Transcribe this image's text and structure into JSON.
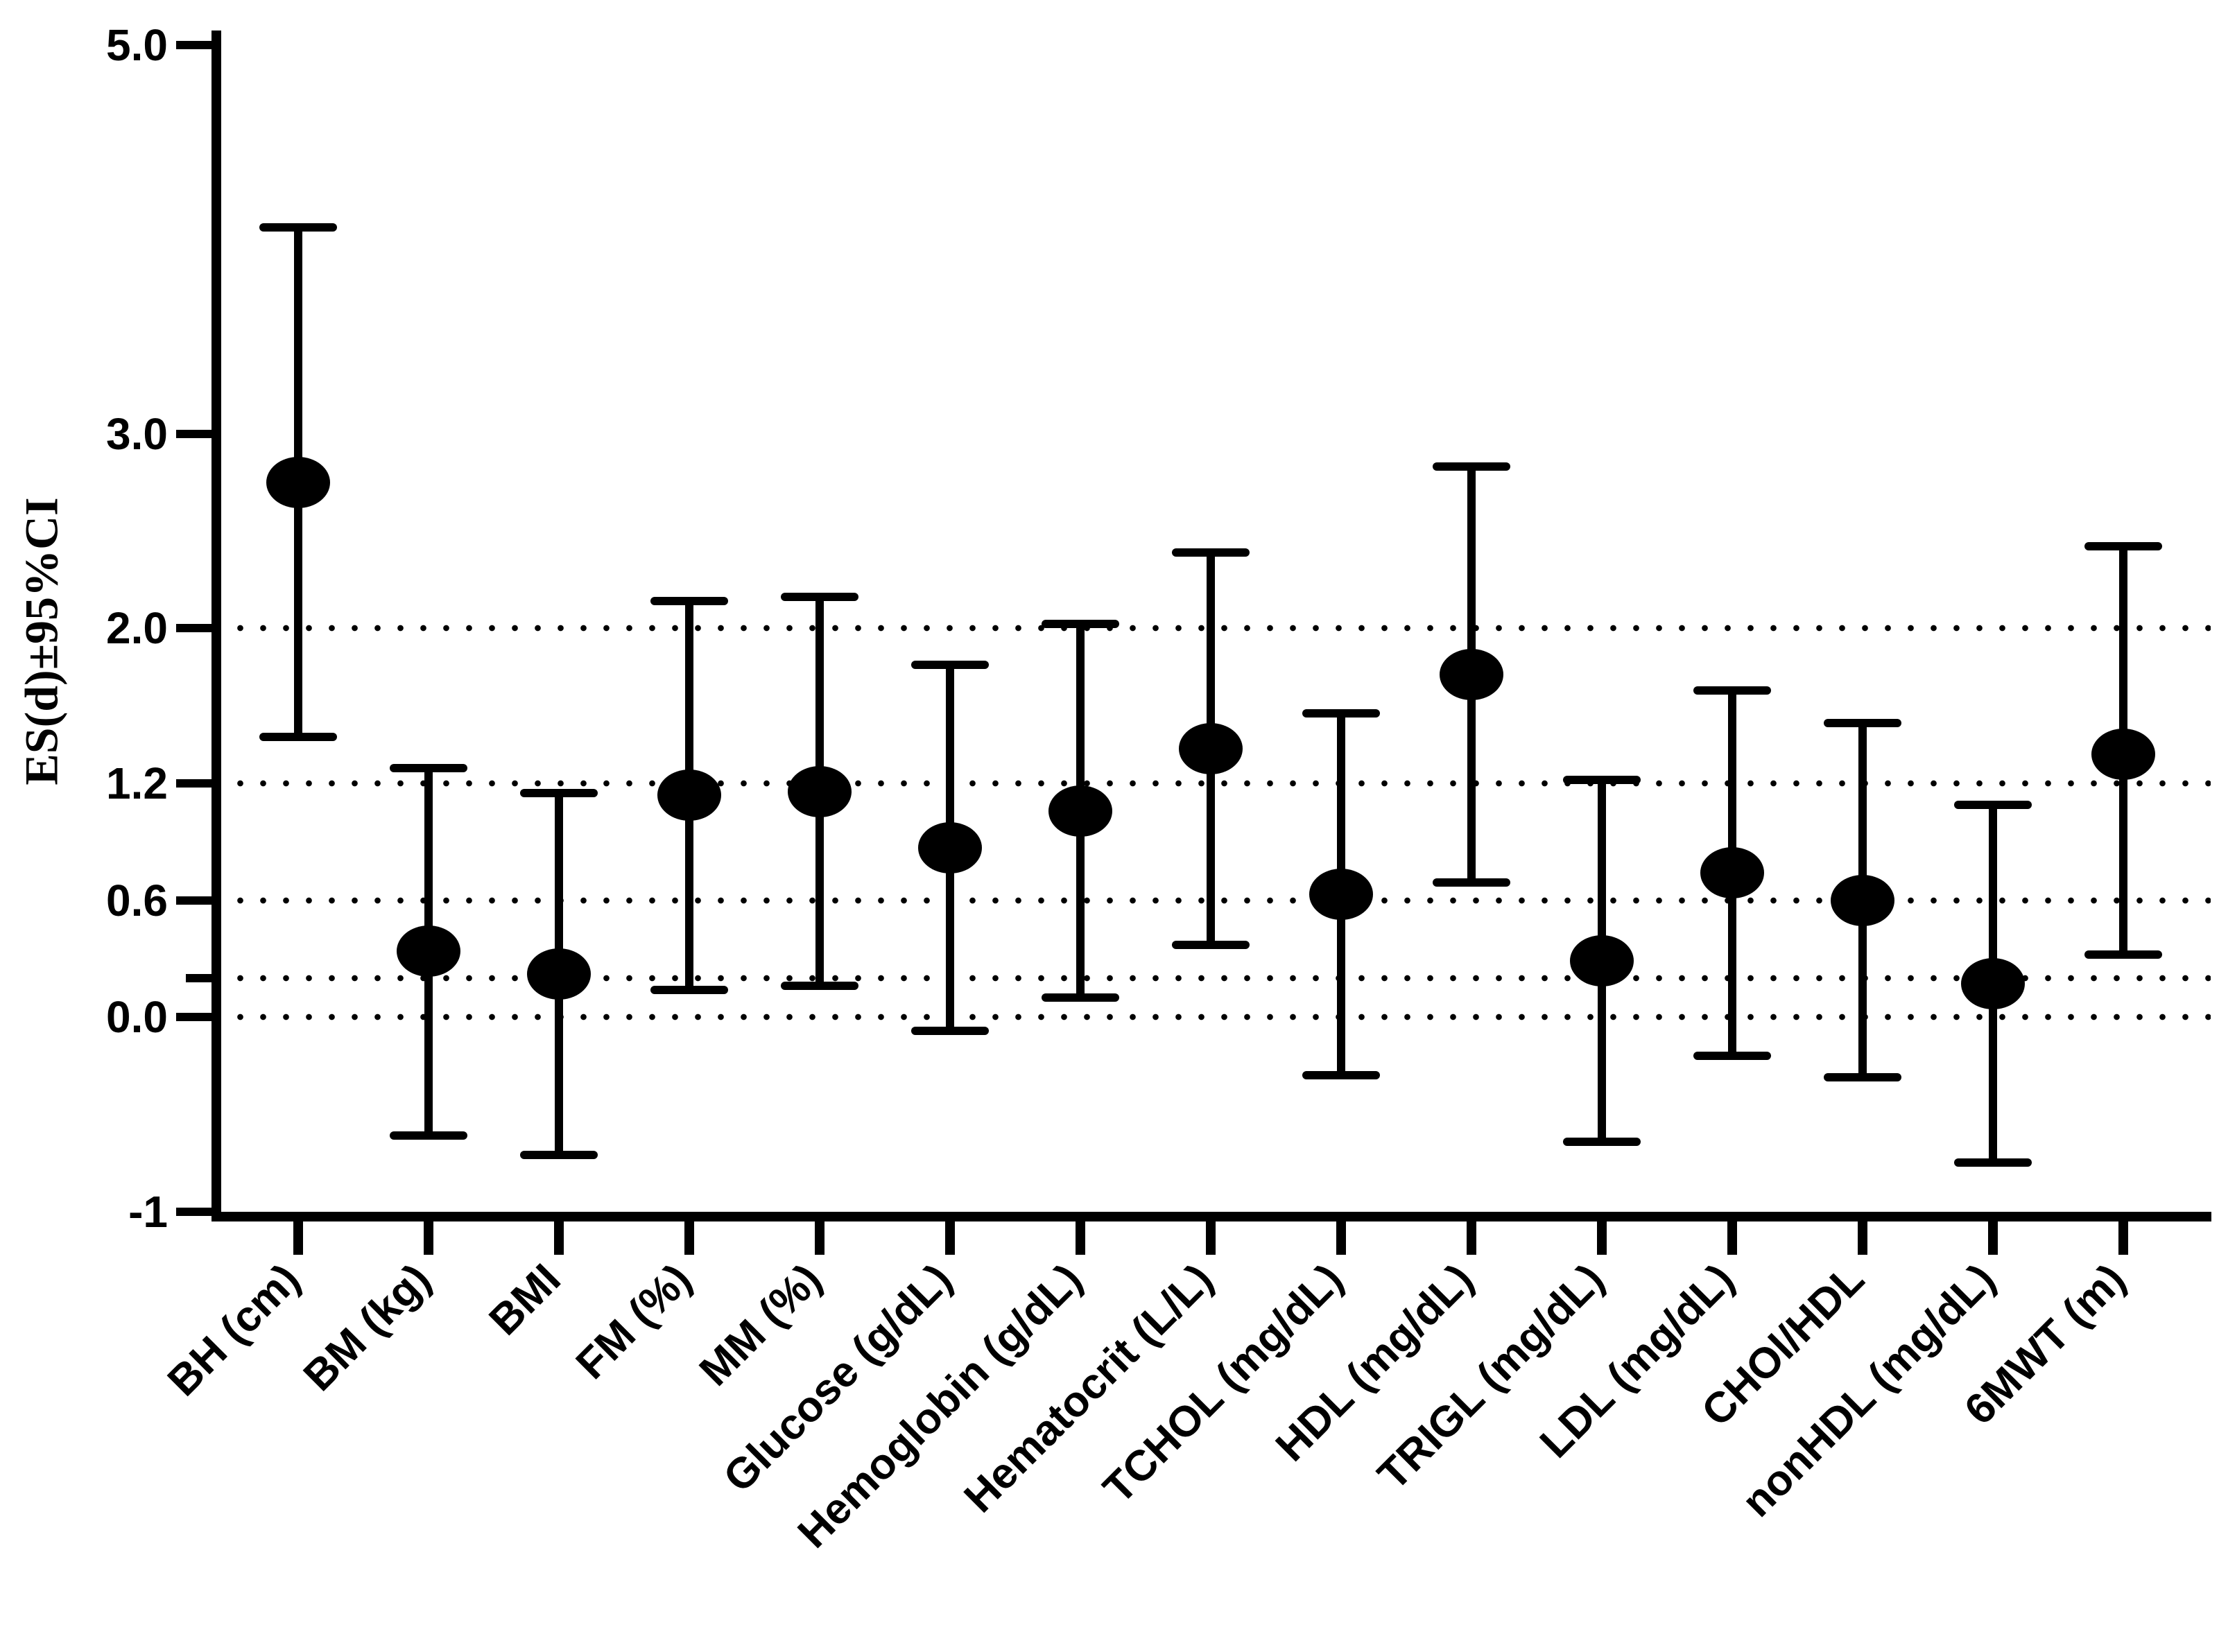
{
  "chart_data": {
    "type": "scatter",
    "subtype": "point_estimate_with_95ci_error_bars",
    "title": "",
    "xlabel": "",
    "ylabel": "ES(d)±95%CI",
    "ylim": [
      -1,
      5.0
    ],
    "grid": "horizontal-dotted",
    "legend_position": "none",
    "marker": "filled-black-ellipse",
    "yticks": [
      {
        "value": 5.0,
        "label": "5.0"
      },
      {
        "value": 3.0,
        "label": "3.0"
      },
      {
        "value": 2.0,
        "label": "2.0"
      },
      {
        "value": 1.2,
        "label": "1.2"
      },
      {
        "value": 0.6,
        "label": "0.6"
      },
      {
        "value": 0.2,
        "label": ""
      },
      {
        "value": 0.0,
        "label": "0.0"
      },
      {
        "value": -1.0,
        "label": "-1"
      }
    ],
    "gridline_values": [
      2.0,
      1.2,
      0.6,
      0.2,
      0.0
    ],
    "categories": [
      "BH (cm)",
      "BM (kg)",
      "BMI",
      "FM (%)",
      "MM (%)",
      "Glucose (g/dL)",
      "Hemoglobin (g/dL)",
      "Hematocrit (L/L)",
      "TCHOL (mg/dL)",
      "HDL (mg/dL)",
      "TRIGL (mg/dL)",
      "LDL (mg/dL)",
      "CHOl/HDL",
      "nonHDL (mg/dL)",
      "6MWT (m)"
    ],
    "points": [
      {
        "category": "BH (cm)",
        "es": 2.75,
        "ci_low": 1.44,
        "ci_high": 4.06
      },
      {
        "category": "BM (kg)",
        "es": 0.34,
        "ci_low": -0.61,
        "ci_high": 1.28
      },
      {
        "category": "BMI",
        "es": 0.22,
        "ci_low": -0.71,
        "ci_high": 1.15
      },
      {
        "category": "FM (%)",
        "es": 1.14,
        "ci_low": 0.14,
        "ci_high": 2.14
      },
      {
        "category": "MM (%)",
        "es": 1.16,
        "ci_low": 0.16,
        "ci_high": 2.16
      },
      {
        "category": "Glucose (g/dL)",
        "es": 0.87,
        "ci_low": -0.07,
        "ci_high": 1.81
      },
      {
        "category": "Hemoglobin (g/dL)",
        "es": 1.06,
        "ci_low": 0.1,
        "ci_high": 2.02
      },
      {
        "category": "Hematocrit (L/L)",
        "es": 1.38,
        "ci_low": 0.37,
        "ci_high": 2.39
      },
      {
        "category": "TCHOL (mg/dL)",
        "es": 0.63,
        "ci_low": -0.3,
        "ci_high": 1.56
      },
      {
        "category": "HDL (mg/dL)",
        "es": 1.76,
        "ci_low": 0.69,
        "ci_high": 2.83
      },
      {
        "category": "TRIGL (mg/dL)",
        "es": 0.29,
        "ci_low": -0.64,
        "ci_high": 1.22
      },
      {
        "category": "LDL (mg/dL)",
        "es": 0.74,
        "ci_low": -0.2,
        "ci_high": 1.68
      },
      {
        "category": "CHOl/HDL",
        "es": 0.6,
        "ci_low": -0.31,
        "ci_high": 1.51
      },
      {
        "category": "nonHDL (mg/dL)",
        "es": 0.17,
        "ci_low": -0.75,
        "ci_high": 1.09
      },
      {
        "category": "6MWT (m)",
        "es": 1.35,
        "ci_low": 0.32,
        "ci_high": 2.42
      }
    ]
  },
  "colors": {
    "ink": "#000000",
    "background": "#ffffff"
  }
}
